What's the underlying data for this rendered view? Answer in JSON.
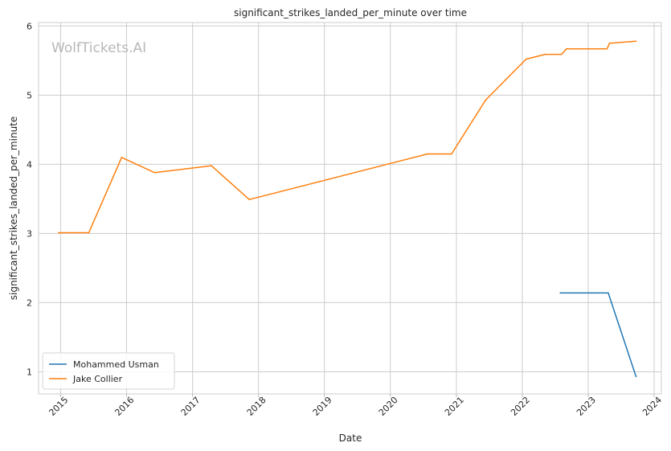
{
  "chart_data": {
    "type": "line",
    "title": "significant_strikes_landed_per_minute over time",
    "xlabel": "Date",
    "ylabel": "significant_strikes_landed_per_minute",
    "watermark": "WolfTickets.AI",
    "xlim": [
      "2014-09-01",
      "2024-02-10"
    ],
    "ylim": [
      0.68,
      6.05
    ],
    "x_ticks": [
      "2015",
      "2016",
      "2017",
      "2018",
      "2019",
      "2020",
      "2021",
      "2022",
      "2023",
      "2024"
    ],
    "y_ticks": [
      1,
      2,
      3,
      4,
      5,
      6
    ],
    "grid": true,
    "legend_position": "lower-left",
    "series": [
      {
        "name": "Mohammed Usman",
        "color": "#1f77b4",
        "points": [
          {
            "x": "2022-07-30",
            "y": 2.14
          },
          {
            "x": "2023-04-22",
            "y": 2.14
          },
          {
            "x": "2023-09-23",
            "y": 0.93
          }
        ]
      },
      {
        "name": "Jake Collier",
        "color": "#ff7f0e",
        "points": [
          {
            "x": "2014-12-20",
            "y": 3.01
          },
          {
            "x": "2015-06-06",
            "y": 3.01
          },
          {
            "x": "2015-12-05",
            "y": 4.1
          },
          {
            "x": "2016-06-04",
            "y": 3.88
          },
          {
            "x": "2017-04-15",
            "y": 3.98
          },
          {
            "x": "2017-11-11",
            "y": 3.49
          },
          {
            "x": "2020-07-25",
            "y": 4.15
          },
          {
            "x": "2020-12-05",
            "y": 4.15
          },
          {
            "x": "2021-06-12",
            "y": 4.93
          },
          {
            "x": "2022-01-22",
            "y": 5.52
          },
          {
            "x": "2022-05-07",
            "y": 5.59
          },
          {
            "x": "2022-08-06",
            "y": 5.59
          },
          {
            "x": "2022-09-03",
            "y": 5.67
          },
          {
            "x": "2023-04-15",
            "y": 5.67
          },
          {
            "x": "2023-04-29",
            "y": 5.75
          },
          {
            "x": "2023-09-23",
            "y": 5.78
          }
        ]
      }
    ]
  }
}
